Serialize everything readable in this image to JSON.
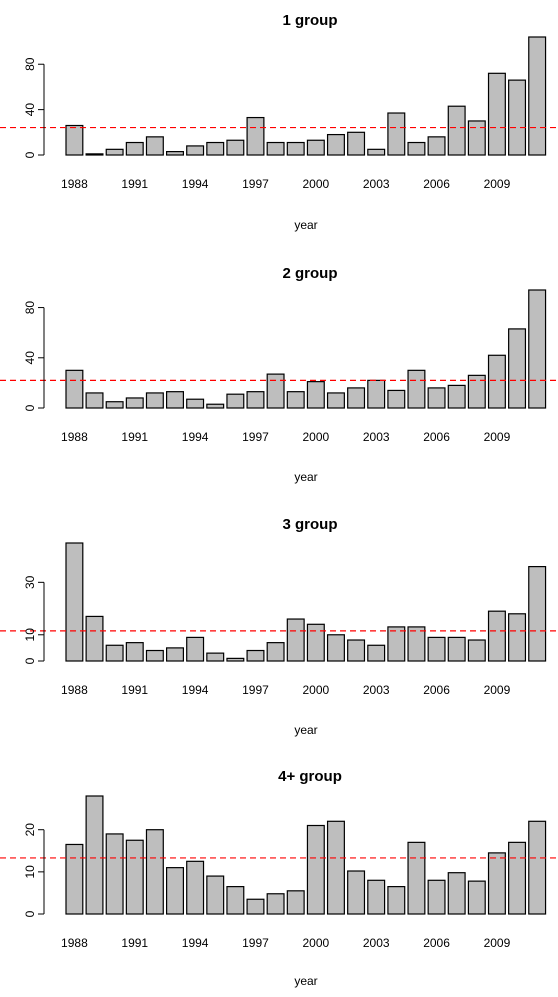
{
  "colors": {
    "bar_fill": "#bebebe",
    "bar_stroke": "#000000",
    "reference_line": "#ff0000"
  },
  "chart_data": [
    {
      "type": "bar",
      "title": "1 group",
      "xlabel": "year",
      "ylabel": "",
      "categories": [
        1988,
        1989,
        1990,
        1991,
        1992,
        1993,
        1994,
        1995,
        1996,
        1997,
        1998,
        1999,
        2000,
        2001,
        2002,
        2003,
        2004,
        2005,
        2006,
        2007,
        2008,
        2009,
        2010,
        2011
      ],
      "x_tick_labels": [
        "1988",
        "1991",
        "1994",
        "1997",
        "2000",
        "2003",
        "2006",
        "2009"
      ],
      "values": [
        26,
        1,
        5,
        11,
        16,
        3,
        8,
        11,
        13,
        33,
        11,
        11,
        13,
        18,
        20,
        5,
        37,
        11,
        16,
        43,
        30,
        72,
        66,
        104
      ],
      "y_ticks": [
        0,
        40,
        80
      ],
      "ylim": [
        0,
        104
      ],
      "reference_line": {
        "style": "dashed",
        "value": 24.2
      }
    },
    {
      "type": "bar",
      "title": "2 group",
      "xlabel": "year",
      "ylabel": "",
      "categories": [
        1988,
        1989,
        1990,
        1991,
        1992,
        1993,
        1994,
        1995,
        1996,
        1997,
        1998,
        1999,
        2000,
        2001,
        2002,
        2003,
        2004,
        2005,
        2006,
        2007,
        2008,
        2009,
        2010,
        2011
      ],
      "x_tick_labels": [
        "1988",
        "1991",
        "1994",
        "1997",
        "2000",
        "2003",
        "2006",
        "2009"
      ],
      "values": [
        30,
        12,
        5,
        8,
        12,
        13,
        7,
        3,
        11,
        13,
        27,
        13,
        21,
        12,
        16,
        22,
        14,
        30,
        16,
        18,
        26,
        42,
        63,
        94
      ],
      "y_ticks": [
        0,
        40,
        80
      ],
      "ylim": [
        0,
        94
      ],
      "reference_line": {
        "style": "dashed",
        "value": 22
      }
    },
    {
      "type": "bar",
      "title": "3 group",
      "xlabel": "year",
      "ylabel": "",
      "categories": [
        1988,
        1989,
        1990,
        1991,
        1992,
        1993,
        1994,
        1995,
        1996,
        1997,
        1998,
        1999,
        2000,
        2001,
        2002,
        2003,
        2004,
        2005,
        2006,
        2007,
        2008,
        2009,
        2010,
        2011
      ],
      "x_tick_labels": [
        "1988",
        "1991",
        "1994",
        "1997",
        "2000",
        "2003",
        "2006",
        "2009"
      ],
      "values": [
        45,
        17,
        6,
        7,
        4,
        5,
        9,
        3,
        1,
        4,
        7,
        16,
        14,
        10,
        8,
        6,
        13,
        13,
        9,
        9,
        8,
        19,
        18,
        36
      ],
      "y_ticks": [
        0,
        10,
        30
      ],
      "ylim": [
        0,
        45
      ],
      "reference_line": {
        "style": "dashed",
        "value": 11.5
      }
    },
    {
      "type": "bar",
      "title": "4+ group",
      "xlabel": "year",
      "ylabel": "",
      "categories": [
        1988,
        1989,
        1990,
        1991,
        1992,
        1993,
        1994,
        1995,
        1996,
        1997,
        1998,
        1999,
        2000,
        2001,
        2002,
        2003,
        2004,
        2005,
        2006,
        2007,
        2008,
        2009,
        2010,
        2011
      ],
      "x_tick_labels": [
        "1988",
        "1991",
        "1994",
        "1997",
        "2000",
        "2003",
        "2006",
        "2009"
      ],
      "values": [
        16.5,
        28,
        19,
        17.5,
        20,
        11,
        12.5,
        9,
        6.5,
        3.5,
        4.8,
        5.5,
        21,
        22,
        10.2,
        8,
        6.5,
        17,
        8,
        9.8,
        7.8,
        14.5,
        17,
        22
      ],
      "y_ticks": [
        0,
        10,
        20
      ],
      "ylim": [
        0,
        28
      ],
      "reference_line": {
        "style": "dashed",
        "value": 13.3
      }
    }
  ]
}
